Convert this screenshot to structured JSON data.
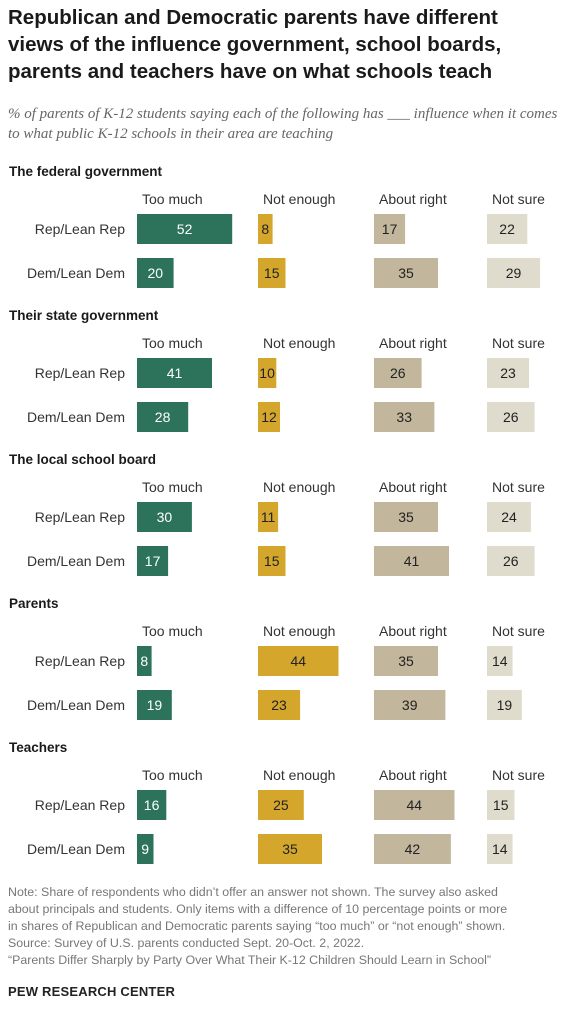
{
  "title": "Republican and Democratic parents have different views of the influence government, school boards, parents and teachers have on what schools teach",
  "subtitle": "% of parents of K-12 students saying each of the following has ___ influence when it comes to what public K-12 schools in their area are teaching",
  "note_lines": [
    "Note: Share of respondents who didn’t offer an answer not shown. The survey also asked",
    "about principals and students. Only items with a difference of 10 percentage points or more",
    "in shares of Republican and Democratic parents saying “too much” or “not enough” shown.",
    "Source: Survey of U.S. parents conducted Sept. 20-Oct. 2, 2022.",
    "“Parents Differ Sharply by Party Over What Their K-12 Children Should Learn in School”"
  ],
  "source_brand": "PEW RESEARCH CENTER",
  "colors": {
    "too_much": "#2d735b",
    "not_enough": "#d4a72c",
    "about_right": "#c2b79c",
    "not_sure": "#e0dccd",
    "label_light": "#ffffff",
    "label_dark": "#222222"
  },
  "chart_data": {
    "type": "bar",
    "columns": [
      "Too much",
      "Not enough",
      "About right",
      "Not sure"
    ],
    "rows": [
      "Rep/Lean Rep",
      "Dem/Lean Dem"
    ],
    "panels": [
      {
        "title": "The federal government",
        "series": [
          {
            "name": "Rep/Lean Rep",
            "values": [
              52,
              8,
              17,
              22
            ]
          },
          {
            "name": "Dem/Lean Dem",
            "values": [
              20,
              15,
              35,
              29
            ]
          }
        ]
      },
      {
        "title": "Their state government",
        "series": [
          {
            "name": "Rep/Lean Rep",
            "values": [
              41,
              10,
              26,
              23
            ]
          },
          {
            "name": "Dem/Lean Dem",
            "values": [
              28,
              12,
              33,
              26
            ]
          }
        ]
      },
      {
        "title": "The local school board",
        "series": [
          {
            "name": "Rep/Lean Rep",
            "values": [
              30,
              11,
              35,
              24
            ]
          },
          {
            "name": "Dem/Lean Dem",
            "values": [
              17,
              15,
              41,
              26
            ]
          }
        ]
      },
      {
        "title": "Parents",
        "series": [
          {
            "name": "Rep/Lean Rep",
            "values": [
              8,
              44,
              35,
              14
            ]
          },
          {
            "name": "Dem/Lean Dem",
            "values": [
              19,
              23,
              39,
              19
            ]
          }
        ]
      },
      {
        "title": "Teachers",
        "series": [
          {
            "name": "Rep/Lean Rep",
            "values": [
              16,
              25,
              44,
              15
            ]
          },
          {
            "name": "Dem/Lean Dem",
            "values": [
              9,
              35,
              42,
              14
            ]
          }
        ]
      }
    ]
  }
}
